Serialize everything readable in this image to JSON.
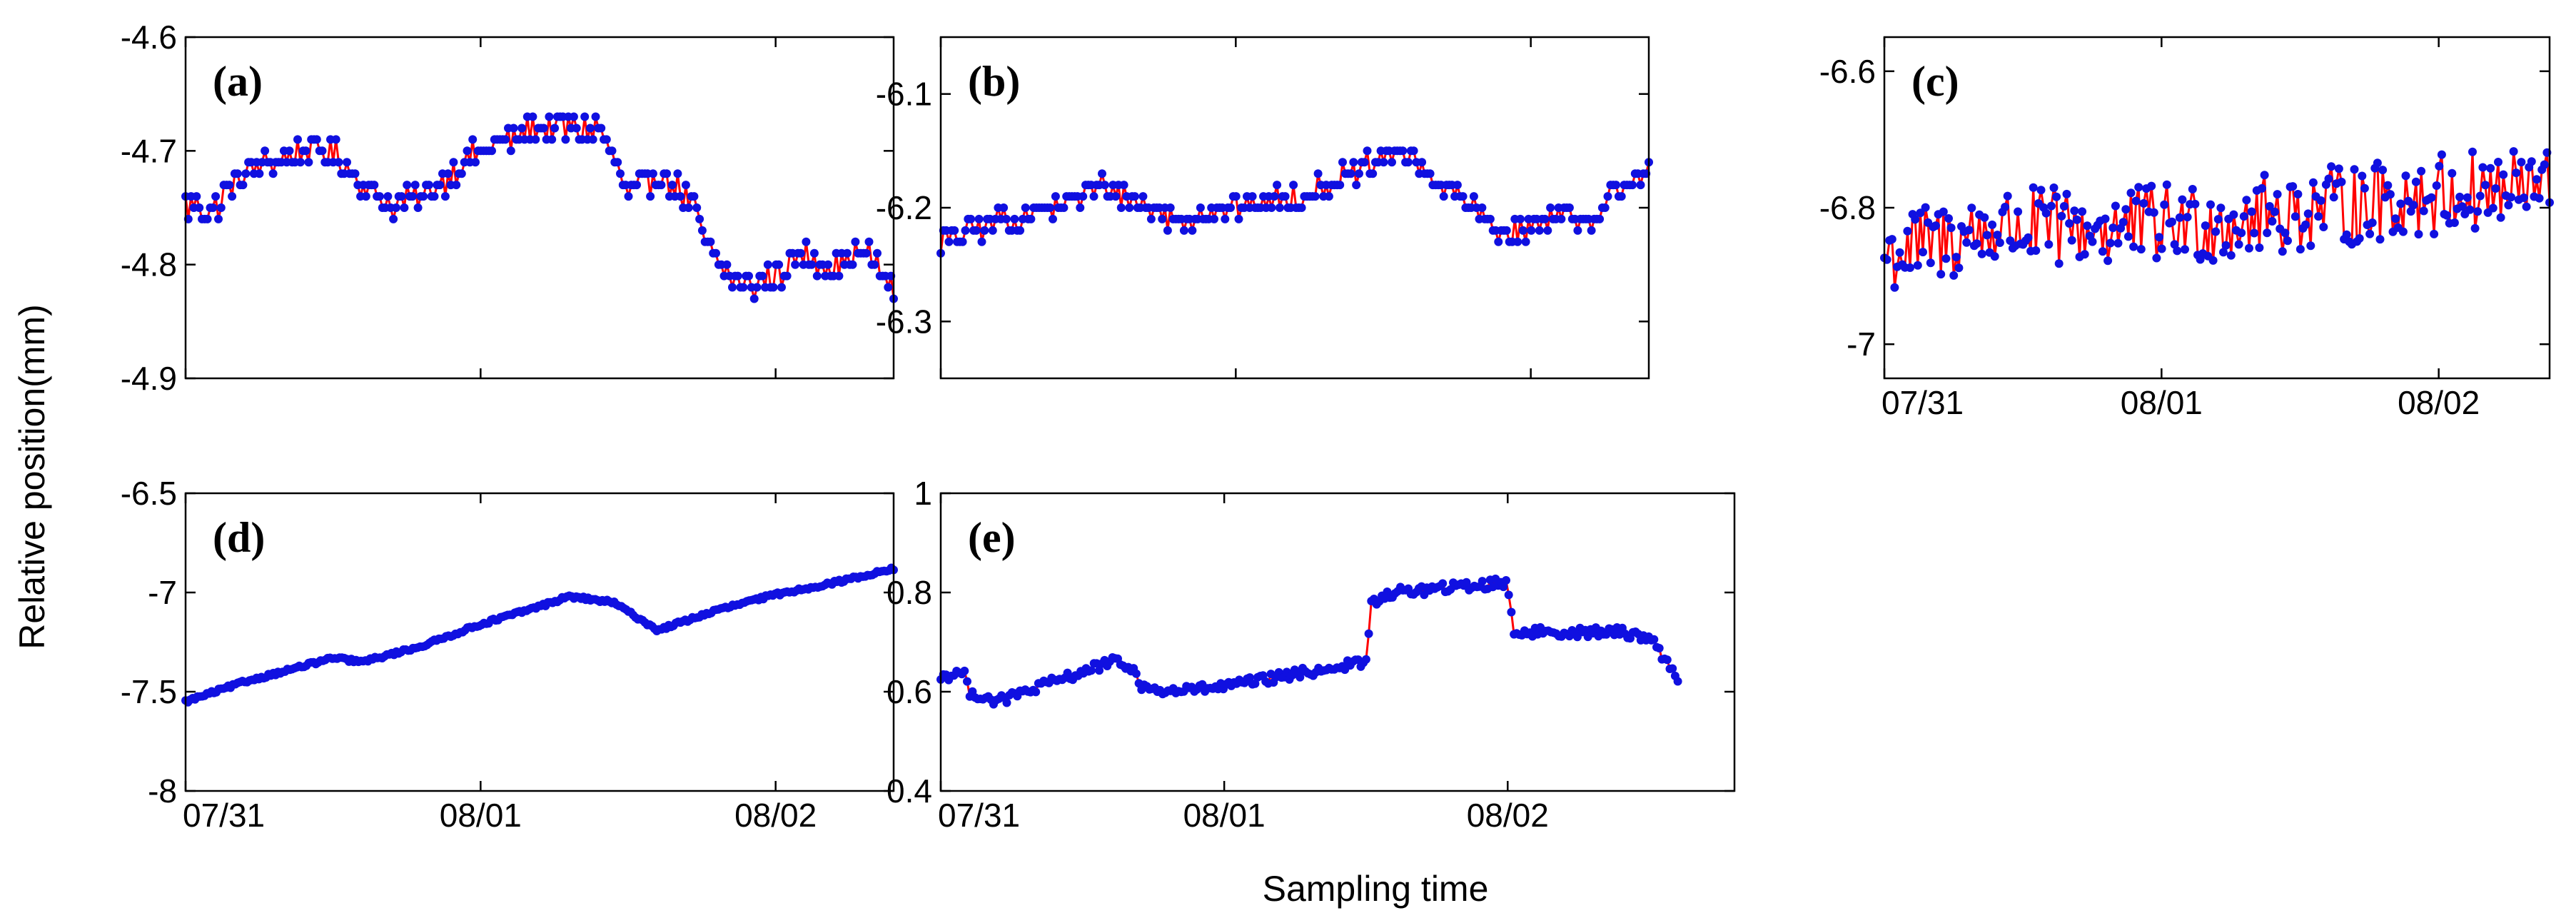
{
  "figure": {
    "ylabel": "Relative position(mm)",
    "xlabel": "Sampling time",
    "colors": {
      "line": "#ff0000",
      "marker": "#1010e0",
      "axes": "#000000"
    }
  },
  "chart_data": [
    {
      "id": "a",
      "label": "(a)",
      "type": "line",
      "ylim": [
        -4.9,
        -4.6
      ],
      "yticks": [
        "-4.6",
        "-4.7",
        "-4.8",
        "-4.9"
      ],
      "ytick_values": [
        -4.6,
        -4.7,
        -4.8,
        -4.9
      ],
      "xlim": [
        0,
        2.4
      ],
      "xticks": [],
      "xtick_values": [],
      "control_x": [
        0,
        0.1,
        0.2,
        0.3,
        0.4,
        0.5,
        0.6,
        0.7,
        0.8,
        0.9,
        1.0,
        1.1,
        1.2,
        1.3,
        1.4,
        1.5,
        1.6,
        1.7,
        1.8,
        1.9,
        2.0,
        2.1,
        2.2,
        2.3,
        2.4
      ],
      "control_y": [
        -4.75,
        -4.75,
        -4.72,
        -4.71,
        -4.7,
        -4.7,
        -4.73,
        -4.75,
        -4.74,
        -4.72,
        -4.7,
        -4.69,
        -4.68,
        -4.68,
        -4.68,
        -4.74,
        -4.72,
        -4.74,
        -4.8,
        -4.82,
        -4.81,
        -4.79,
        -4.8,
        -4.79,
        -4.82
      ],
      "quantize": 0.01,
      "noise": 0.012,
      "n_points": 260
    },
    {
      "id": "b",
      "label": "(b)",
      "type": "line",
      "ylim": [
        -6.35,
        -6.05
      ],
      "yticks": [
        "-6.1",
        "-6.2",
        "-6.3"
      ],
      "ytick_values": [
        -6.1,
        -6.2,
        -6.3
      ],
      "xlim": [
        0,
        2.4
      ],
      "xticks": [],
      "xtick_values": [],
      "control_x": [
        0,
        0.2,
        0.4,
        0.55,
        0.8,
        1.0,
        1.2,
        1.4,
        1.55,
        1.7,
        1.9,
        2.0,
        2.1,
        2.2,
        2.3,
        2.4
      ],
      "control_y": [
        -6.23,
        -6.21,
        -6.2,
        -6.18,
        -6.21,
        -6.2,
        -6.19,
        -6.17,
        -6.15,
        -6.18,
        -6.22,
        -6.22,
        -6.2,
        -6.22,
        -6.18,
        -6.17
      ],
      "quantize": 0.01,
      "noise": 0.01,
      "n_points": 260
    },
    {
      "id": "c",
      "label": "(c)",
      "type": "line",
      "ylim": [
        -7.05,
        -6.55
      ],
      "yticks": [
        "-6.6",
        "-6.8",
        "-7"
      ],
      "ytick_values": [
        -6.6,
        -6.8,
        -7.0
      ],
      "xlim": [
        0,
        2.4
      ],
      "xticks": [
        "07/31",
        "08/01",
        "08/02"
      ],
      "xtick_values": [
        0,
        1,
        2
      ],
      "control_x": [
        0,
        0.4,
        0.8,
        1.2,
        1.6,
        2.0,
        2.4
      ],
      "control_y": [
        -6.87,
        -6.83,
        -6.83,
        -6.82,
        -6.8,
        -6.78,
        -6.77
      ],
      "quantize": 0,
      "noise": 0.06,
      "n_points": 260
    },
    {
      "id": "d",
      "label": "(d)",
      "type": "line",
      "ylim": [
        -8,
        -6.5
      ],
      "yticks": [
        "-6.5",
        "-7",
        "-7.5",
        "-8"
      ],
      "ytick_values": [
        -6.5,
        -7.0,
        -7.5,
        -8.0
      ],
      "xlim": [
        0,
        2.4
      ],
      "xticks": [
        "07/31",
        "08/01",
        "08/02"
      ],
      "xtick_values": [
        0,
        1,
        2
      ],
      "control_x": [
        0,
        0.2,
        0.4,
        0.5,
        0.6,
        0.8,
        1.0,
        1.2,
        1.3,
        1.45,
        1.6,
        1.8,
        2.0,
        2.2,
        2.4
      ],
      "control_y": [
        -7.55,
        -7.45,
        -7.37,
        -7.33,
        -7.35,
        -7.27,
        -7.16,
        -7.07,
        -7.02,
        -7.05,
        -7.19,
        -7.09,
        -7.01,
        -6.95,
        -6.88
      ],
      "quantize": 0,
      "noise": 0.008,
      "n_points": 300
    },
    {
      "id": "e",
      "label": "(e)",
      "type": "line",
      "ylim": [
        0.4,
        1.0
      ],
      "yticks": [
        "1",
        "0.8",
        "0.6",
        "0.4"
      ],
      "ytick_values": [
        1.0,
        0.8,
        0.6,
        0.4
      ],
      "xlim": [
        0,
        1.4
      ],
      "xticks": [
        "07/31",
        "08/01",
        "08/02"
      ],
      "xtick_values": [
        0,
        0.5,
        1.0
      ],
      "control_x": [
        0,
        0.04,
        0.05,
        0.1,
        0.2,
        0.3,
        0.34,
        0.35,
        0.4,
        0.5,
        0.6,
        0.7,
        0.75,
        0.76,
        0.8,
        0.9,
        1.0,
        1.01,
        1.1,
        1.2,
        1.25,
        1.3
      ],
      "control_y": [
        0.63,
        0.64,
        0.6,
        0.58,
        0.62,
        0.66,
        0.65,
        0.61,
        0.6,
        0.61,
        0.63,
        0.65,
        0.66,
        0.78,
        0.8,
        0.81,
        0.82,
        0.72,
        0.72,
        0.72,
        0.71,
        0.63
      ],
      "quantize": 0,
      "noise": 0.01,
      "n_points": 280
    }
  ]
}
